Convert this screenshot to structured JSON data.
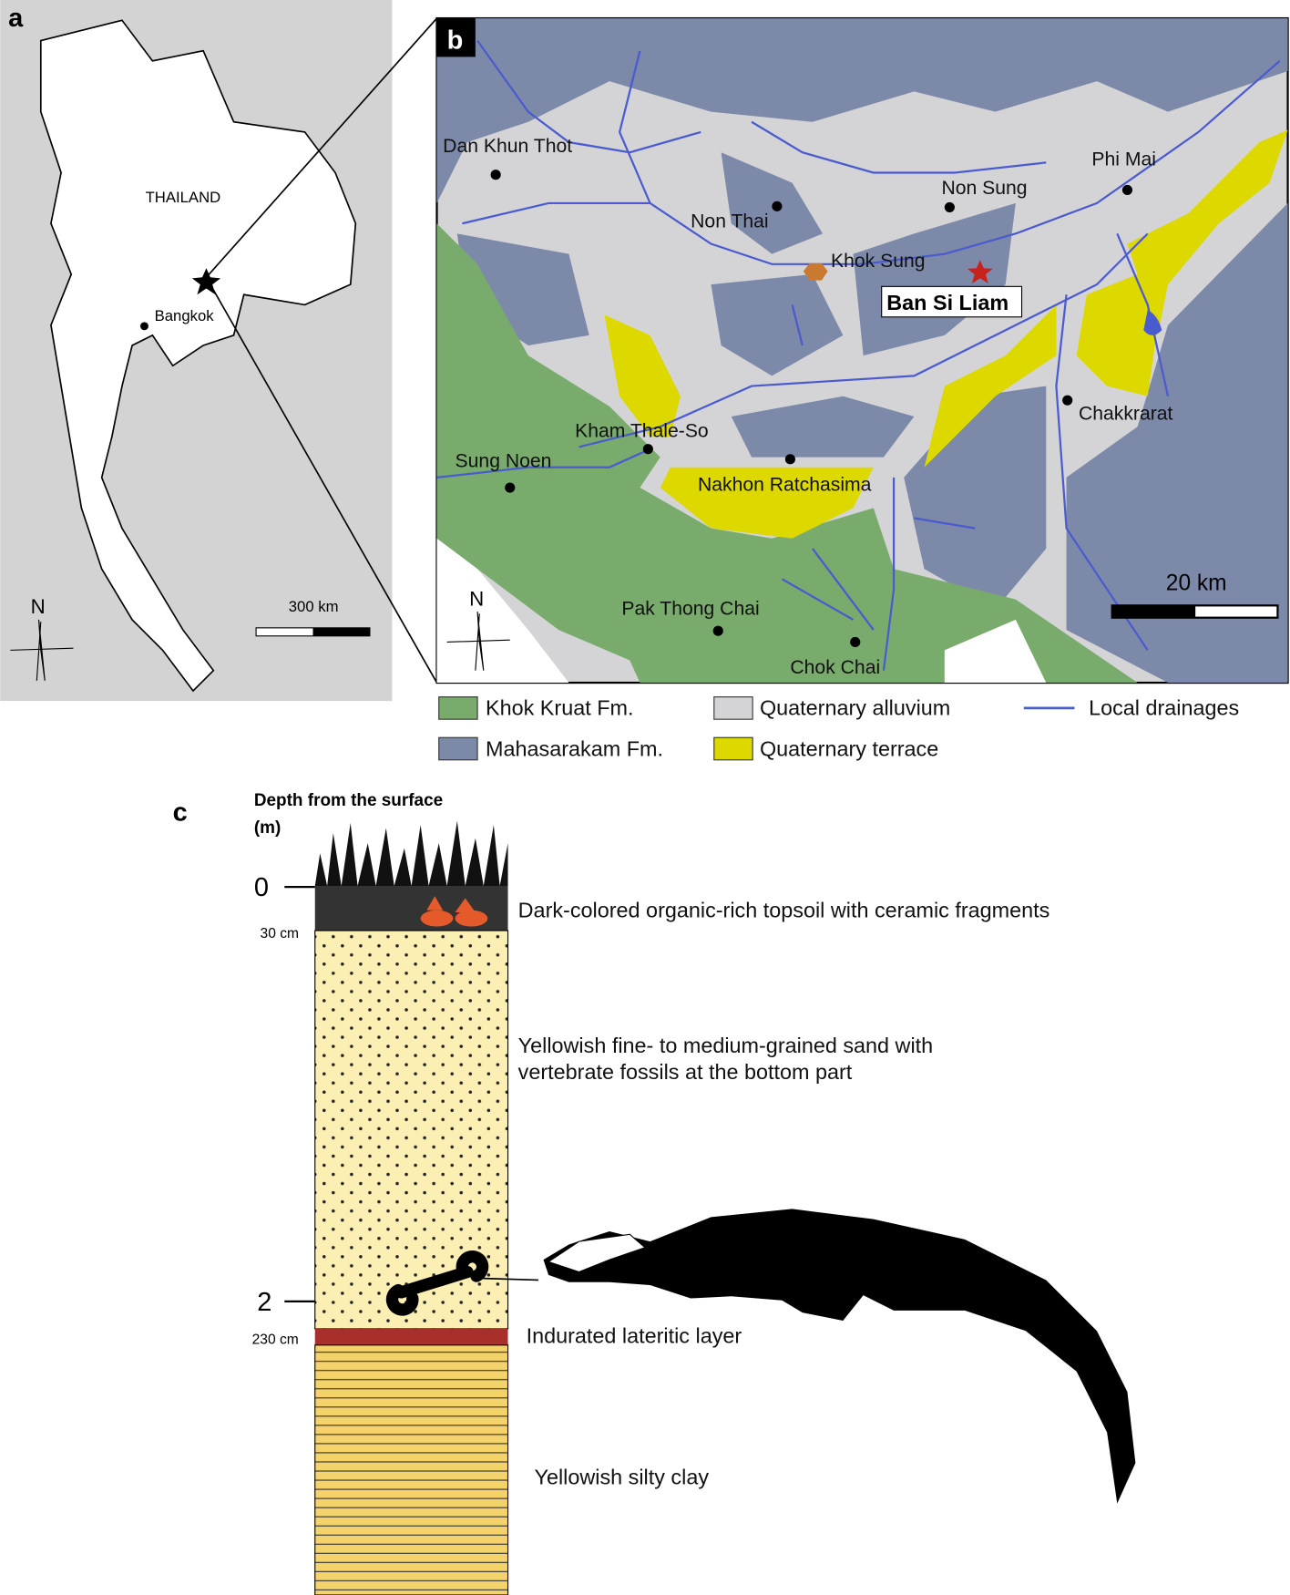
{
  "panels": {
    "a": {
      "label": "a",
      "country": "THAILAND",
      "city": "Bangkok",
      "scale": "300 km",
      "north": "N"
    },
    "b": {
      "label": "b",
      "places": [
        "Dan Khun Thot",
        "Non Thai",
        "Non Sung",
        "Phi Mai",
        "Khok Sung",
        "Chakkrarat",
        "Kham Thale-So",
        "Sung Noen",
        "Nakhon Ratchasima",
        "Pak Thong Chai",
        "Chok Chai"
      ],
      "site": "Ban Si Liam",
      "scale": "20 km",
      "north": "N",
      "legend": [
        "Khok Kruat Fm.",
        "Quaternary alluvium",
        "Local drainages",
        "Mahasarakam Fm.",
        "Quaternary terrace"
      ]
    },
    "c": {
      "label": "c",
      "axis_title": "Depth from the surface",
      "axis_unit": "(m)",
      "ticks": [
        "0",
        "2"
      ],
      "depth_labels": [
        "30 cm",
        "230 cm"
      ],
      "layers": [
        "Dark-colored organic-rich topsoil with ceramic fragments",
        "Yellowish fine- to medium-grained sand with",
        "vertebrate fossils at the bottom part",
        "Indurated lateritic layer",
        "Yellowish silty clay"
      ]
    }
  }
}
